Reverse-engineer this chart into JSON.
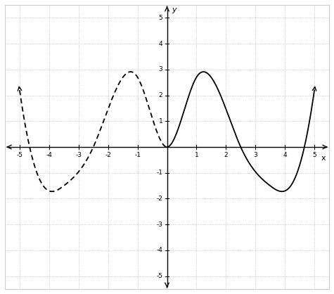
{
  "xlim": [
    -5.5,
    5.5
  ],
  "ylim": [
    -5.5,
    5.5
  ],
  "xticks": [
    -5,
    -4,
    -3,
    -2,
    -1,
    1,
    2,
    3,
    4,
    5
  ],
  "yticks": [
    -5,
    -4,
    -3,
    -2,
    -1,
    1,
    2,
    3,
    4,
    5
  ],
  "xlabel": "x",
  "ylabel": "y",
  "grid_color": "#bbbbbb",
  "axis_color": "#000000",
  "solid_color": "#000000",
  "dashed_color": "#000000",
  "background_color": "#ffffff",
  "border_color": "#cccccc",
  "title": ""
}
